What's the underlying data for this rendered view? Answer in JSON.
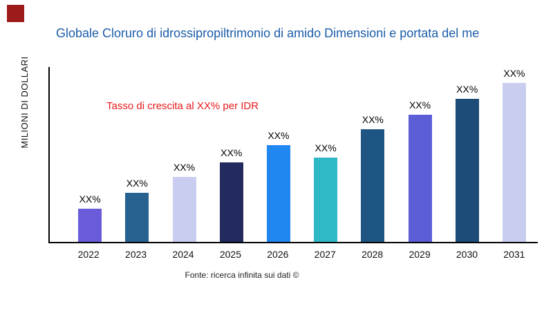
{
  "page": {
    "title": "Globale Cloruro di idrossipropiltrimonio di amido Dimensioni e portata del me",
    "title_color": "#1A5CA8",
    "corner_accent_color": "#9E1B1B",
    "growth_note": "Tasso di crescita al XX% per IDR",
    "growth_note_color": "#E8191C",
    "y_axis_label": "MILIONI DI DOLLARI",
    "source_note": "Fonte: ricerca infinita sui dati ©"
  },
  "chart_data": {
    "type": "bar",
    "title": "Globale Cloruro di idrossipropiltrimonio di amido Dimensioni e portata del me",
    "ylabel": "MILIONI DI DOLLARI",
    "xlabel": "",
    "categories": [
      "2022",
      "2023",
      "2024",
      "2025",
      "2026",
      "2027",
      "2028",
      "2029",
      "2030",
      "2031"
    ],
    "values": [
      21,
      31,
      41,
      50,
      61,
      53,
      71,
      80,
      90,
      100
    ],
    "values_unit": "relative height (actual values masked as XX% in chart)",
    "bar_labels": [
      "XX%",
      "XX%",
      "XX%",
      "XX%",
      "XX%",
      "XX%",
      "XX%",
      "XX%",
      "XX%",
      "XX%"
    ],
    "bar_colors": [
      "#6A5BDB",
      "#27618F",
      "#C9CEF0",
      "#222A5E",
      "#2086F0",
      "#2FB9C6",
      "#1F5582",
      "#5B5ED6",
      "#1C4C77",
      "#C9CEF0"
    ],
    "ylim": [
      0,
      110
    ],
    "grid": false,
    "legend": false,
    "annotation": "Tasso di crescita al XX% per IDR"
  }
}
